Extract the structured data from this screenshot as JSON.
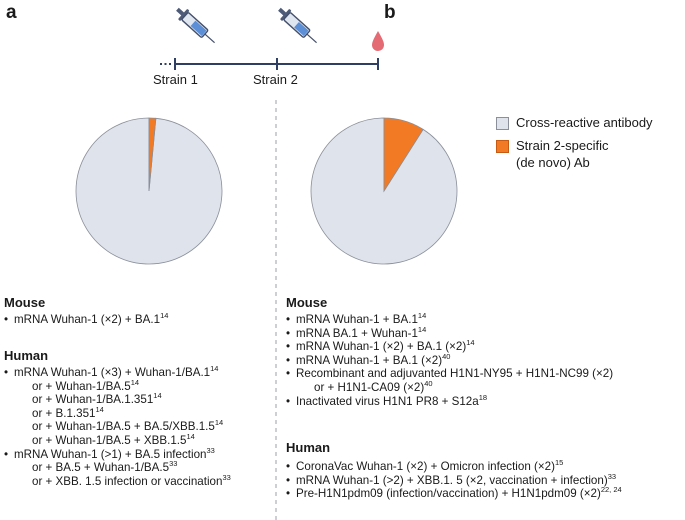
{
  "panels": {
    "a": "a",
    "b": "b"
  },
  "timeline": {
    "strain1": "Strain 1",
    "strain2": "Strain 2"
  },
  "legend": {
    "items": [
      {
        "label_lines": [
          "Cross-reactive antibody"
        ],
        "color": "#dfe3ec"
      },
      {
        "label_lines": [
          "Strain 2-specific",
          "(de novo) Ab"
        ],
        "color": "#f27a24"
      }
    ]
  },
  "colors": {
    "cross_reactive": "#dfe3ec",
    "strain2_specific": "#f27a24",
    "pie_stroke": "#8a8f99",
    "timeline": "#2f3f63"
  },
  "chart_data": [
    {
      "type": "pie",
      "panel": "a",
      "slices": [
        {
          "label": "Cross-reactive antibody",
          "value": 98.5
        },
        {
          "label": "Strain 2-specific (de novo) Ab",
          "value": 1.5
        }
      ]
    },
    {
      "type": "pie",
      "panel": "b",
      "slices": [
        {
          "label": "Cross-reactive antibody",
          "value": 91
        },
        {
          "label": "Strain 2-specific (de novo) Ab",
          "value": 9
        }
      ]
    }
  ],
  "left": {
    "mouse": {
      "title": "Mouse",
      "items": [
        {
          "bullet": true,
          "indent": false,
          "text": "mRNA Wuhan-1 (×2) + BA.1",
          "sup": "14"
        }
      ]
    },
    "human": {
      "title": "Human",
      "items": [
        {
          "bullet": true,
          "indent": false,
          "text": "mRNA Wuhan-1 (×3) + Wuhan-1/BA.1",
          "sup": "14"
        },
        {
          "bullet": false,
          "indent": true,
          "text": "or + Wuhan-1/BA.5",
          "sup": "14"
        },
        {
          "bullet": false,
          "indent": true,
          "text": "or + Wuhan-1/BA.1.351",
          "sup": "14"
        },
        {
          "bullet": false,
          "indent": true,
          "text": "or + B.1.351",
          "sup": "14"
        },
        {
          "bullet": false,
          "indent": true,
          "text": "or + Wuhan-1/BA.5 + BA.5/XBB.1.5",
          "sup": "14"
        },
        {
          "bullet": false,
          "indent": true,
          "text": "or + Wuhan-1/BA.5 + XBB.1.5",
          "sup": "14"
        },
        {
          "bullet": true,
          "indent": false,
          "text": "mRNA Wuhan-1 (>1) + BA.5 infection",
          "sup": "33"
        },
        {
          "bullet": false,
          "indent": true,
          "text": "or + BA.5 + Wuhan-1/BA.5",
          "sup": "33"
        },
        {
          "bullet": false,
          "indent": true,
          "text": "or + XBB. 1.5 infection or vaccination",
          "sup": "33"
        }
      ]
    }
  },
  "right": {
    "mouse": {
      "title": "Mouse",
      "items": [
        {
          "bullet": true,
          "indent": false,
          "text": "mRNA Wuhan-1 + BA.1",
          "sup": "14"
        },
        {
          "bullet": true,
          "indent": false,
          "text": "mRNA BA.1 + Wuhan-1",
          "sup": "14"
        },
        {
          "bullet": true,
          "indent": false,
          "text": "mRNA Wuhan-1 (×2) + BA.1 (×2)",
          "sup": "14"
        },
        {
          "bullet": true,
          "indent": false,
          "text": "mRNA Wuhan-1 + BA.1 (×2)",
          "sup": "40"
        },
        {
          "bullet": true,
          "indent": false,
          "text": "Recombinant and adjuvanted H1N1-NY95 + H1N1-NC99 (×2)",
          "sup": ""
        },
        {
          "bullet": false,
          "indent": true,
          "text": "or + H1N1-CA09 (×2)",
          "sup": "40"
        },
        {
          "bullet": true,
          "indent": false,
          "text": "Inactivated virus H1N1 PR8 + S12a",
          "sup": "18"
        }
      ]
    },
    "human": {
      "title": "Human",
      "items": [
        {
          "bullet": true,
          "indent": false,
          "text": "CoronaVac Wuhan-1 (×2) + Omicron infection (×2)",
          "sup": "15"
        },
        {
          "bullet": true,
          "indent": false,
          "text": "mRNA Wuhan-1 (>2) + XBB.1. 5 (×2, vaccination + infection)",
          "sup": "33"
        },
        {
          "bullet": true,
          "indent": false,
          "text": "Pre-H1N1pdm09 (infection/vaccination) + H1N1pdm09 (×2)",
          "sup": "22, 24"
        }
      ]
    }
  }
}
